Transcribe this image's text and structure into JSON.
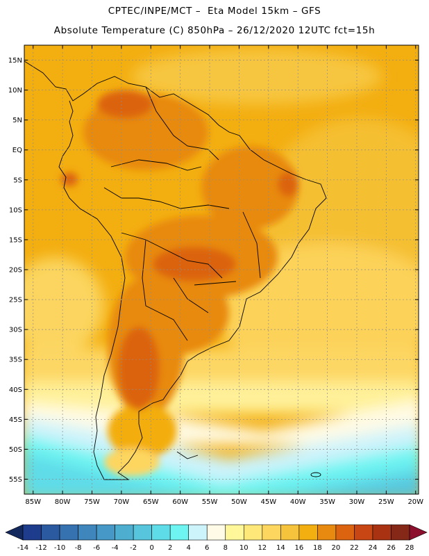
{
  "header": {
    "line1": "CPTEC/INPE/MCT –  Eta Model 15km – GFS",
    "line2": "Absolute Temperature (C) 850hPa – 26/12/2020 12UTC fct=15h"
  },
  "map": {
    "latitude_labels": [
      "15N",
      "10N",
      "5N",
      "EQ",
      "5S",
      "10S",
      "15S",
      "20S",
      "25S",
      "30S",
      "35S",
      "40S",
      "45S",
      "50S",
      "55S"
    ],
    "latitude_values": [
      15,
      10,
      5,
      0,
      -5,
      -10,
      -15,
      -20,
      -25,
      -30,
      -35,
      -40,
      -45,
      -50,
      -55
    ],
    "longitude_labels": [
      "85W",
      "80W",
      "75W",
      "70W",
      "65W",
      "60W",
      "55W",
      "50W",
      "45W",
      "40W",
      "35W",
      "30W",
      "25W",
      "20W"
    ],
    "longitude_values": [
      -85,
      -80,
      -75,
      -70,
      -65,
      -60,
      -55,
      -50,
      -45,
      -40,
      -35,
      -30,
      -25,
      -20
    ],
    "lat_range": [
      -57.5,
      17.5
    ],
    "lon_range": [
      -86.5,
      -19.5
    ]
  },
  "colorbar": {
    "labels": [
      "-14",
      "-12",
      "-10",
      "-8",
      "-6",
      "-4",
      "-2",
      "0",
      "2",
      "4",
      "6",
      "8",
      "10",
      "12",
      "14",
      "16",
      "18",
      "20",
      "22",
      "24",
      "26",
      "28"
    ],
    "colors": [
      "#1e3c8c",
      "#2b5aa0",
      "#3671b0",
      "#3f86bd",
      "#4699c6",
      "#4eaed0",
      "#57c5dc",
      "#5edce8",
      "#6ef5f2",
      "#cdf3fb",
      "#fffbe6",
      "#fff79a",
      "#ffe87a",
      "#fdd660",
      "#f6c33c",
      "#f3ae10",
      "#e88a10",
      "#dc6410",
      "#c84614",
      "#a83212",
      "#852818"
    ],
    "under_color": "#13285c",
    "over_color": "#8c0f2d"
  }
}
